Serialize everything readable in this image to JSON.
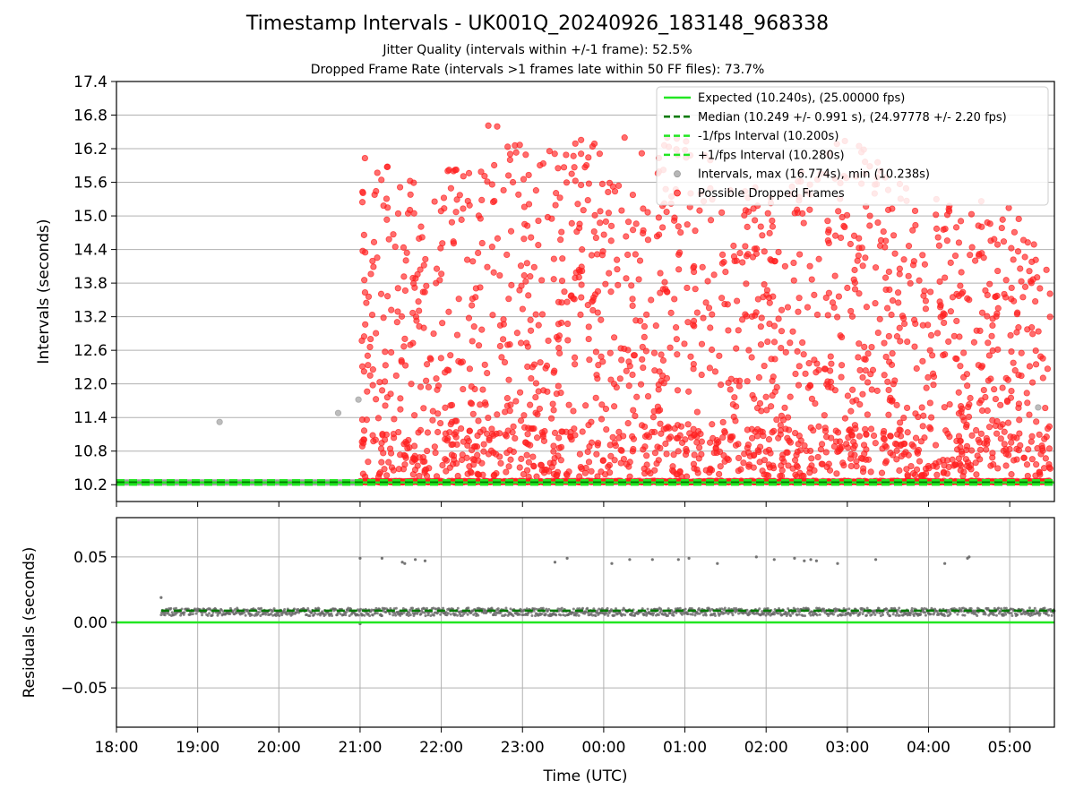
{
  "title": "Timestamp Intervals - UK001Q_20240926_183148_968338",
  "subtitle_line1": "Jitter Quality (intervals within +/-1 frame): 52.5%",
  "subtitle_line2": "Dropped Frame Rate (intervals >1 frames late within 50 FF files): 73.7%",
  "chart_data": [
    {
      "type": "scatter",
      "ylabel": "Intervals (seconds)",
      "xlim": [
        18.0,
        29.55
      ],
      "ylim": [
        9.9,
        17.4
      ],
      "yticks": [
        "10.2",
        "10.8",
        "11.4",
        "12.0",
        "12.6",
        "13.2",
        "13.8",
        "14.4",
        "15.0",
        "15.6",
        "16.2",
        "16.8",
        "17.4"
      ],
      "xticks_hours": [
        18,
        19,
        20,
        21,
        22,
        23,
        24,
        25,
        26,
        27,
        28,
        29
      ],
      "grid": true,
      "legend_position": "upper right",
      "legend": [
        {
          "label": "Expected (10.240s), (25.00000 fps)",
          "style": "solid-line",
          "color": "#22e622"
        },
        {
          "label": "Median (10.249 +/- 0.991 s), (24.97778 +/- 2.20 fps)",
          "style": "dashed-line",
          "color": "#007a00"
        },
        {
          "label": "-1/fps Interval (10.200s)",
          "style": "dashed-line",
          "color": "#22e622"
        },
        {
          "label": "+1/fps Interval (10.280s)",
          "style": "dashed-line",
          "color": "#22e622"
        },
        {
          "label": "Intervals, max (16.774s), min (10.238s)",
          "style": "marker",
          "color": "#999999"
        },
        {
          "label": "Possible Dropped Frames",
          "style": "marker",
          "color": "#ff2020"
        }
      ],
      "reference_lines": {
        "expected": 10.24,
        "median": 10.249,
        "minus_fps": 10.2,
        "plus_fps": 10.28
      },
      "normal_intervals": {
        "x_start": 18.05,
        "x_end": 21.0,
        "y": 10.24,
        "outliers": [
          [
            19.27,
            11.32
          ],
          [
            20.73,
            11.48
          ],
          [
            20.98,
            11.72
          ],
          [
            29.35,
            11.58
          ]
        ]
      },
      "dropped_frames": {
        "x_start": 21.0,
        "x_end": 29.5,
        "y_min": 10.24,
        "y_max": 16.774,
        "baseline_y": 10.24,
        "envelope_upper": [
          [
            21.0,
            16.1
          ],
          [
            21.8,
            15.7
          ],
          [
            22.2,
            15.9
          ],
          [
            22.6,
            16.7
          ],
          [
            23.0,
            16.3
          ],
          [
            24.0,
            16.4
          ],
          [
            25.0,
            16.4
          ],
          [
            26.0,
            15.4
          ],
          [
            27.0,
            16.5
          ],
          [
            28.0,
            15.3
          ],
          [
            29.0,
            15.3
          ],
          [
            29.5,
            14.2
          ]
        ]
      }
    },
    {
      "type": "scatter",
      "xlabel": "Time (UTC)",
      "ylabel": "Residuals (seconds)",
      "xlim": [
        18.0,
        29.55
      ],
      "ylim": [
        -0.08,
        0.08
      ],
      "yticks": [
        "−0.05",
        "0.00",
        "0.05"
      ],
      "yticks_values": [
        -0.05,
        0.0,
        0.05
      ],
      "xticks": [
        "18:00",
        "19:00",
        "20:00",
        "21:00",
        "22:00",
        "23:00",
        "00:00",
        "01:00",
        "02:00",
        "03:00",
        "04:00",
        "05:00"
      ],
      "xticks_hours": [
        18,
        19,
        20,
        21,
        22,
        23,
        24,
        25,
        26,
        27,
        28,
        29
      ],
      "grid": true,
      "reference_lines": {
        "zero": 0.0,
        "median": 0.009
      },
      "residual_band": {
        "x_start": 18.55,
        "x_end": 29.55,
        "center": 0.008,
        "spread": 0.003
      },
      "residual_outliers": [
        [
          18.55,
          0.019
        ],
        [
          21.0,
          0.049
        ],
        [
          21.27,
          0.049
        ],
        [
          21.52,
          0.046
        ],
        [
          21.55,
          0.045
        ],
        [
          21.68,
          0.048
        ],
        [
          21.8,
          0.047
        ],
        [
          23.4,
          0.046
        ],
        [
          23.55,
          0.049
        ],
        [
          24.1,
          0.045
        ],
        [
          24.32,
          0.048
        ],
        [
          24.6,
          0.048
        ],
        [
          24.92,
          0.048
        ],
        [
          25.05,
          0.049
        ],
        [
          25.4,
          0.045
        ],
        [
          25.88,
          0.05
        ],
        [
          26.1,
          0.048
        ],
        [
          26.35,
          0.049
        ],
        [
          26.47,
          0.047
        ],
        [
          26.55,
          0.048
        ],
        [
          26.62,
          0.047
        ],
        [
          26.88,
          0.045
        ],
        [
          27.35,
          0.048
        ],
        [
          28.2,
          0.045
        ],
        [
          28.48,
          0.049
        ],
        [
          28.5,
          0.05
        ],
        [
          21.0,
          -0.001
        ]
      ]
    }
  ],
  "colors": {
    "expected": "#22e622",
    "median": "#007a00",
    "normal": "#999999",
    "dropped": "#ff2020",
    "residual": "#666666",
    "grid": "#b0b0b0"
  }
}
